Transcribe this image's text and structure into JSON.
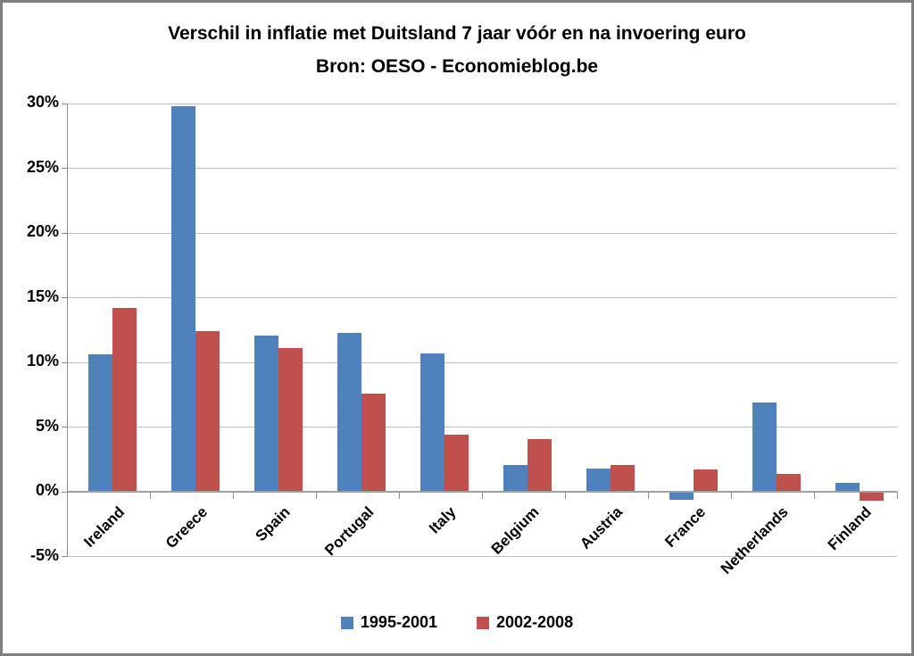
{
  "frame": {
    "background_color": "#ffffff",
    "border_color": "#7f7f7f"
  },
  "chart_data": {
    "type": "bar",
    "title": "Verschil in inflatie met Duitsland 7 jaar vóór en na invoering euro",
    "subtitle": "Bron: OESO - Economieblog.be",
    "categories": [
      "Ireland",
      "Greece",
      "Spain",
      "Portugal",
      "Italy",
      "Belgium",
      "Austria",
      "France",
      "Netherlands",
      "Finland"
    ],
    "series": [
      {
        "name": "1995-2001",
        "color": "#4f81bd",
        "values": [
          10.6,
          29.8,
          12.1,
          12.3,
          10.7,
          2.1,
          1.8,
          -0.6,
          6.9,
          0.7
        ]
      },
      {
        "name": "2002-2008",
        "color": "#c0504d",
        "values": [
          14.2,
          12.4,
          11.1,
          7.6,
          4.4,
          4.1,
          2.1,
          1.7,
          1.4,
          -0.7
        ]
      }
    ],
    "ylabel": "",
    "xlabel": "",
    "ylim": [
      -5,
      30
    ],
    "y_axis": {
      "unit": "%",
      "tick_values": [
        30,
        25,
        20,
        15,
        10,
        5,
        0,
        -5
      ],
      "tick_labels": [
        "30%",
        "25%",
        "20%",
        "15%",
        "10%",
        "5%",
        "0%",
        "-5%"
      ]
    },
    "grid": true,
    "gridline_color": "#bfbfbf",
    "axis_color": "#a0a0a0",
    "legend_position": "bottom"
  }
}
